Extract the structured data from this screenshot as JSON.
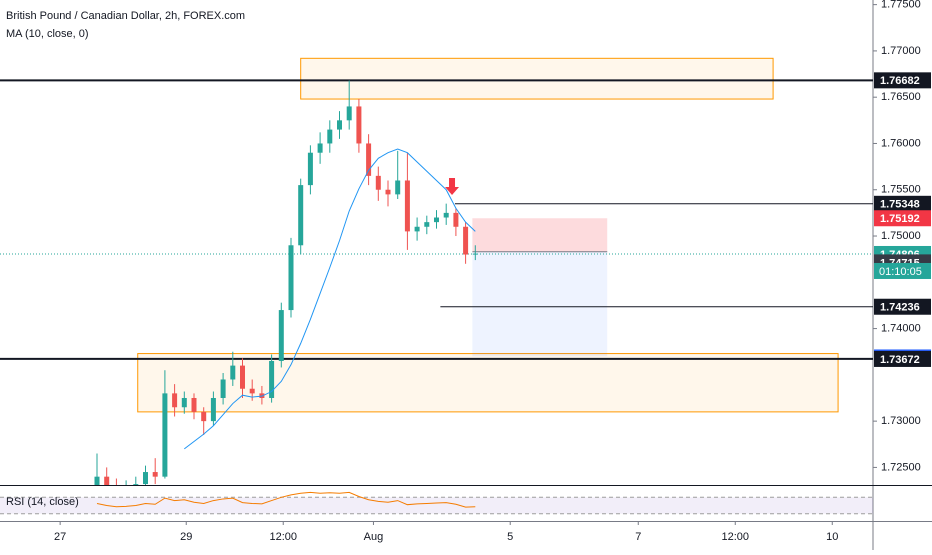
{
  "chart_data": {
    "type": "candlestick",
    "title": "British Pound / Canadian Dollar, 2h, FOREX.com",
    "indicator_label": "MA (10, close, 0)",
    "up_color": "#26a69a",
    "down_color": "#ef5350",
    "x": [
      10,
      11,
      12,
      13,
      14,
      15,
      16,
      17,
      18,
      19,
      20,
      21,
      22,
      23,
      24,
      25,
      26,
      27,
      28,
      29,
      30,
      31,
      32,
      33,
      34,
      35,
      36,
      37,
      38,
      39,
      40,
      41,
      42,
      43,
      44,
      45,
      46,
      47,
      48,
      49
    ],
    "open": [
      1.7225,
      1.724,
      1.723,
      1.7225,
      1.7228,
      1.7232,
      1.7245,
      1.724,
      1.733,
      1.7315,
      1.7325,
      1.731,
      1.73,
      1.7325,
      1.7345,
      1.736,
      1.7335,
      1.733,
      1.7325,
      1.7365,
      1.742,
      1.749,
      1.7555,
      1.759,
      1.76,
      1.7615,
      1.7625,
      1.764,
      1.76,
      1.7565,
      1.755,
      1.7545,
      1.756,
      1.7505,
      1.751,
      1.7515,
      1.752,
      1.7525,
      1.751,
      1.748
    ],
    "high": [
      1.7265,
      1.725,
      1.7238,
      1.7236,
      1.724,
      1.7252,
      1.726,
      1.7355,
      1.734,
      1.7332,
      1.733,
      1.7315,
      1.7332,
      1.7352,
      1.7375,
      1.7368,
      1.7345,
      1.7338,
      1.7372,
      1.7428,
      1.7498,
      1.7562,
      1.7598,
      1.7612,
      1.7625,
      1.7635,
      1.7668,
      1.7648,
      1.761,
      1.7575,
      1.756,
      1.7592,
      1.759,
      1.752,
      1.7522,
      1.7528,
      1.7535,
      1.753,
      1.7515,
      1.749
    ],
    "low": [
      1.7215,
      1.722,
      1.7218,
      1.7218,
      1.7222,
      1.7228,
      1.7232,
      1.7238,
      1.7305,
      1.7308,
      1.7302,
      1.7285,
      1.7295,
      1.7318,
      1.7338,
      1.7325,
      1.7322,
      1.7318,
      1.732,
      1.7358,
      1.7412,
      1.748,
      1.7545,
      1.7578,
      1.759,
      1.7605,
      1.7615,
      1.759,
      1.7555,
      1.7538,
      1.7532,
      1.754,
      1.7485,
      1.7495,
      1.7502,
      1.7508,
      1.7512,
      1.75,
      1.747,
      1.7474
    ],
    "close": [
      1.724,
      1.723,
      1.7225,
      1.7228,
      1.7232,
      1.7245,
      1.724,
      1.733,
      1.7315,
      1.7325,
      1.731,
      1.73,
      1.7325,
      1.7345,
      1.736,
      1.7335,
      1.733,
      1.7325,
      1.7365,
      1.742,
      1.749,
      1.7555,
      1.759,
      1.76,
      1.7615,
      1.7625,
      1.764,
      1.76,
      1.7565,
      1.755,
      1.7545,
      1.756,
      1.7505,
      1.751,
      1.7515,
      1.752,
      1.7525,
      1.751,
      1.748,
      1.7481
    ],
    "ma": {
      "color": "#2196f3",
      "values": [
        null,
        null,
        null,
        null,
        null,
        null,
        null,
        null,
        null,
        1.727,
        1.7278,
        1.7286,
        1.7295,
        1.7307,
        1.7319,
        1.7328,
        1.7326,
        1.7327,
        1.7332,
        1.7343,
        1.7361,
        1.7384,
        1.741,
        1.7438,
        1.7466,
        1.7495,
        1.7527,
        1.7551,
        1.7571,
        1.7584,
        1.759,
        1.7594,
        1.759,
        1.758,
        1.757,
        1.756,
        1.755,
        1.753,
        1.7515,
        1.7505
      ]
    },
    "xlim": [
      0,
      90
    ],
    "ylim": [
      1.7231,
      1.7755
    ],
    "xticks": [
      {
        "value": 6.2,
        "label": "27"
      },
      {
        "value": 19.2,
        "label": "29"
      },
      {
        "value": 29.2,
        "label": "12:00"
      },
      {
        "value": 38.5,
        "label": "Aug"
      },
      {
        "value": 52.6,
        "label": "5"
      },
      {
        "value": 65.8,
        "label": "7"
      },
      {
        "value": 75.8,
        "label": "12:00"
      },
      {
        "value": 85.8,
        "label": "10"
      }
    ],
    "yticks": [
      {
        "value": 1.725,
        "label": "1.72500"
      },
      {
        "value": 1.73,
        "label": "1.73000"
      },
      {
        "value": 1.74,
        "label": "1.74000"
      },
      {
        "value": 1.75,
        "label": "1.75000"
      },
      {
        "value": 1.755,
        "label": "1.75500"
      },
      {
        "value": 1.76,
        "label": "1.76000"
      },
      {
        "value": 1.765,
        "label": "1.76500"
      },
      {
        "value": 1.77,
        "label": "1.77000"
      },
      {
        "value": 1.775,
        "label": "1.77500"
      }
    ],
    "zones": [
      {
        "x": [
          31,
          79.7
        ],
        "y": [
          1.7648,
          1.7692
        ]
      },
      {
        "x": [
          14.2,
          86.4
        ],
        "y": [
          1.731,
          1.7373
        ]
      }
    ],
    "levels": [
      {
        "value": 1.76682,
        "from": 0
      },
      {
        "value": 1.73672,
        "from": 0
      },
      {
        "value": 1.75348,
        "from": 46.9
      },
      {
        "value": 1.74236,
        "from": 45.4
      }
    ],
    "position_tool": {
      "x": [
        48.7,
        62.6
      ],
      "stop": 1.75192,
      "entry": 1.7483,
      "target": 1.737
    },
    "current_price": 1.74806,
    "countdown": "01:10:05",
    "arrow_x": 46.6,
    "price_labels": [
      {
        "value": 1.76682,
        "color": "#131722"
      },
      {
        "value": 1.75348,
        "color": "#131722"
      },
      {
        "value": 1.75192,
        "color": "#f23645"
      },
      {
        "value": 1.74806,
        "color": "#26a69a"
      },
      {
        "value": 1.74715,
        "color": "#363a45"
      },
      {
        "value": 1.74236,
        "color": "#131722"
      },
      {
        "value": 1.73688,
        "color": "#2962ff"
      },
      {
        "value": 1.73672,
        "color": "#131722"
      }
    ],
    "rsi": {
      "label": "RSI (14, close)",
      "color": "#f57c00",
      "ylim": [
        0,
        100
      ],
      "bands": [
        30,
        70
      ],
      "values": [
        55,
        50,
        47,
        48,
        50,
        55,
        53,
        68,
        62,
        64,
        58,
        55,
        62,
        66,
        68,
        57,
        55,
        54,
        62,
        70,
        76,
        80,
        82,
        80,
        81,
        80,
        82,
        72,
        64,
        60,
        58,
        62,
        52,
        54,
        55,
        56,
        57,
        53,
        46,
        47
      ]
    }
  }
}
